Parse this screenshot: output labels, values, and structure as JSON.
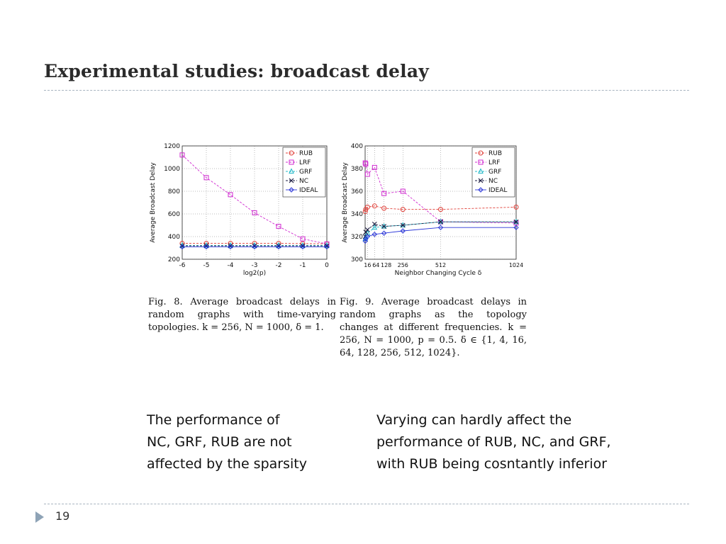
{
  "slide": {
    "title": "Experimental studies: broadcast delay",
    "page_number": "19",
    "left_text": [
      "The performance of",
      "NC, GRF, RUB are not",
      "affected by the sparsity"
    ],
    "right_text": [
      "Varying  can hardly affect the",
      "performance of RUB, NC, and GRF,",
      "with RUB being cosntantly inferior"
    ]
  },
  "captions": {
    "fig8": "Fig. 8.  Average broadcast delays in random graphs with time-varying topologies. k = 256, N = 1000, δ = 1.",
    "fig9": "Fig. 9.  Average broadcast delays in random graphs as the topology changes at different frequencies. k = 256, N = 1000, p = 0.5. δ ∈ {1, 4, 16, 64, 128, 256, 512, 1024}."
  },
  "chart_data": [
    {
      "type": "line",
      "ylabel": "Average Broadcast Delay",
      "xlabel": "log2(p)",
      "xlim": [
        -6,
        0
      ],
      "ylim": [
        200,
        1200
      ],
      "xticks": [
        -6,
        -5,
        -4,
        -3,
        -2,
        -1,
        0
      ],
      "yticks": [
        200,
        400,
        600,
        800,
        1000,
        1200
      ],
      "grid": true,
      "legend_position": "top-right",
      "x": [
        -6,
        -5,
        -4,
        -3,
        -2,
        -1,
        0
      ],
      "series": [
        {
          "name": "RUB",
          "color": "#e0413a",
          "marker": "circle",
          "dash": "3,2",
          "values": [
            340,
            340,
            340,
            340,
            340,
            338,
            336
          ]
        },
        {
          "name": "LRF",
          "color": "#d02ad0",
          "marker": "square",
          "dash": "3,2",
          "values": [
            1120,
            920,
            770,
            610,
            490,
            380,
            335
          ]
        },
        {
          "name": "GRF",
          "color": "#22b8c8",
          "marker": "triangle",
          "dash": "3,2",
          "values": [
            322,
            322,
            322,
            322,
            322,
            322,
            322
          ]
        },
        {
          "name": "NC",
          "color": "#1a1a40",
          "marker": "x",
          "dash": "3,2",
          "values": [
            318,
            318,
            318,
            318,
            318,
            318,
            318
          ]
        },
        {
          "name": "IDEAL",
          "color": "#2a35d8",
          "marker": "diamond",
          "dash": "",
          "values": [
            310,
            310,
            310,
            310,
            310,
            310,
            310
          ]
        }
      ]
    },
    {
      "type": "line",
      "ylabel": "Average Broadcast Delay",
      "xlabel": "Neighbor Changing Cycle δ",
      "xlim": [
        0,
        1024
      ],
      "ylim": [
        300,
        400
      ],
      "xticks": [
        16,
        64,
        128,
        256,
        512,
        1024
      ],
      "xticklabels": [
        "16",
        "64",
        "128",
        "256",
        "512",
        "1024"
      ],
      "yticks": [
        300,
        320,
        340,
        360,
        380,
        400
      ],
      "grid": true,
      "legend_position": "top-right",
      "x": [
        1,
        4,
        16,
        64,
        128,
        256,
        512,
        1024
      ],
      "series": [
        {
          "name": "RUB",
          "color": "#e0413a",
          "marker": "circle",
          "dash": "3,2",
          "values": [
            342,
            344,
            346,
            347,
            345,
            344,
            344,
            346
          ]
        },
        {
          "name": "LRF",
          "color": "#d02ad0",
          "marker": "square",
          "dash": "3,2",
          "values": [
            385,
            384,
            375,
            381,
            358,
            360,
            333,
            332
          ]
        },
        {
          "name": "GRF",
          "color": "#22b8c8",
          "marker": "triangle",
          "dash": "3,2",
          "values": [
            318,
            320,
            323,
            328,
            329,
            330,
            333,
            333
          ]
        },
        {
          "name": "NC",
          "color": "#1a1a40",
          "marker": "x",
          "dash": "3,2",
          "values": [
            320,
            324,
            326,
            331,
            329,
            330,
            333,
            333
          ]
        },
        {
          "name": "IDEAL",
          "color": "#2a35d8",
          "marker": "diamond",
          "dash": "",
          "values": [
            316,
            318,
            320,
            322,
            323,
            325,
            328,
            328
          ]
        }
      ]
    }
  ]
}
